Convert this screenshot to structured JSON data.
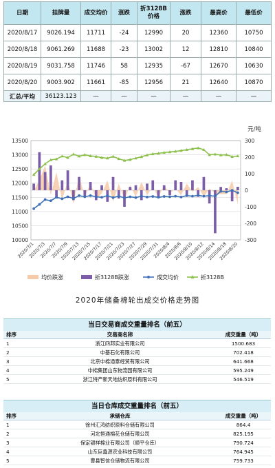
{
  "price_table": {
    "headers": [
      "日期",
      "挂牌量",
      "成交均价",
      "涨跌",
      "折3128B价格",
      "涨跌",
      "最高价",
      "最低价"
    ],
    "rows": [
      [
        "2020/8/17",
        "9026.194",
        "11711",
        "-24",
        "12990",
        "20",
        "12360",
        "10750"
      ],
      [
        "2020/8/18",
        "9061.269",
        "11688",
        "-23",
        "13002",
        "12",
        "12810",
        "10840"
      ],
      [
        "2020/8/19",
        "9031.758",
        "11746",
        "58",
        "12935",
        "-67",
        "12670",
        "10630"
      ],
      [
        "2020/8/20",
        "9003.902",
        "11661",
        "-85",
        "12956",
        "21",
        "12640",
        "10870"
      ]
    ],
    "total": [
      "汇总/平均",
      "36123.123",
      "—",
      "—",
      "—",
      "—",
      "—",
      "—"
    ]
  },
  "chart_data": {
    "type": "line",
    "unit_label": "元/吨",
    "title": "2020年储备棉轮出成交价格走势图",
    "x": [
      "2020/7/1",
      "2020/7/2",
      "2020/7/3",
      "2020/7/6",
      "2020/7/7",
      "2020/7/8",
      "2020/7/9",
      "2020/7/10",
      "2020/7/13",
      "2020/7/14",
      "2020/7/15",
      "2020/7/16",
      "2020/7/17",
      "2020/7/20",
      "2020/7/21",
      "2020/7/22",
      "2020/7/23",
      "2020/7/24",
      "2020/7/27",
      "2020/7/28",
      "2020/7/29",
      "2020/7/30",
      "2020/7/31",
      "2020/8/3",
      "2020/8/4",
      "2020/8/5",
      "2020/8/6",
      "2020/8/7",
      "2020/8/10",
      "2020/8/11",
      "2020/8/12",
      "2020/8/13",
      "2020/8/14",
      "2020/8/17",
      "2020/8/18",
      "2020/8/19",
      "2020/8/20"
    ],
    "x_tick_labels": [
      "2020/7/1",
      "2020/7/3",
      "2020/7/7",
      "2020/7/9",
      "2020/7/13",
      "2020/7/15",
      "2020/7/17",
      "2020/7/21",
      "2020/7/23",
      "2020/7/27",
      "2020/7/29",
      "2020/7/31",
      "2020/8/4",
      "2020/8/6",
      "2020/8/10",
      "2020/8/12",
      "2020/8/14",
      "2020/8/18",
      "2020/8/20"
    ],
    "ylim_left": [
      10000,
      13500
    ],
    "ylim_right": [
      -300,
      300
    ],
    "yticks_left": [
      10000,
      10500,
      11000,
      11500,
      12000,
      12500,
      13000,
      13500
    ],
    "yticks_right": [
      -300,
      -200,
      -100,
      0,
      100,
      200,
      300
    ],
    "series": [
      {
        "name": "均价跌涨",
        "type": "area",
        "axis": "right",
        "color": "#f6c9a8",
        "values": [
          0,
          60,
          150,
          -30,
          110,
          -60,
          60,
          -80,
          90,
          -40,
          40,
          -50,
          -20,
          60,
          -70,
          40,
          -60,
          30,
          -40,
          50,
          -30,
          20,
          -40,
          30,
          -20,
          10,
          -30,
          40,
          -10,
          20,
          -40,
          10,
          -20,
          -24,
          -23,
          58,
          -85
        ]
      },
      {
        "name": "折3128B跌涨",
        "type": "bar",
        "axis": "right",
        "color": "#7b5ea7",
        "values": [
          40,
          230,
          110,
          150,
          -50,
          60,
          120,
          -60,
          80,
          -40,
          50,
          -60,
          30,
          -70,
          80,
          -50,
          -100,
          20,
          30,
          -60,
          40,
          60,
          -40,
          30,
          -30,
          60,
          50,
          -30,
          60,
          -40,
          80,
          -80,
          -260,
          20,
          12,
          -67,
          21
        ]
      },
      {
        "name": "成交均价",
        "type": "line",
        "axis": "left",
        "color": "#3f6fb5",
        "values": [
          11100,
          11250,
          11420,
          11380,
          11500,
          11450,
          11520,
          11460,
          11560,
          11520,
          11560,
          11520,
          11500,
          11560,
          11490,
          11540,
          11480,
          11520,
          11490,
          11540,
          11510,
          11530,
          11500,
          11530,
          11520,
          11540,
          11510,
          11560,
          11540,
          11570,
          11540,
          11560,
          11540,
          11711,
          11688,
          11746,
          11661
        ]
      },
      {
        "name": "折3128B",
        "type": "line",
        "axis": "left",
        "color": "#8cbf4b",
        "values": [
          12300,
          12500,
          12680,
          12820,
          12850,
          12950,
          12900,
          13020,
          12950,
          13000,
          12960,
          12940,
          12900,
          12880,
          12940,
          12860,
          12800,
          12830,
          12880,
          12930,
          12990,
          13030,
          13050,
          13080,
          13100,
          13120,
          13150,
          13180,
          13210,
          13240,
          13180,
          13000,
          13020,
          12990,
          13002,
          12935,
          12956
        ]
      }
    ]
  },
  "trader_rank": {
    "title": "当日交易商成交重量排名（前五）",
    "headers": [
      "排序",
      "交易商名称",
      "成交重量（吨）"
    ],
    "rows": [
      [
        "1",
        "浙江四邦实业有限公司",
        "1500.683"
      ],
      [
        "2",
        "中基石化有限公司",
        "702.418"
      ],
      [
        "3",
        "北京中棉通泰经贸有限公司",
        "641.668"
      ],
      [
        "4",
        "中棉集团山东物流园有限公司",
        "595.249"
      ],
      [
        "5",
        "浙江特产新天地纺织原料有限公司",
        "546.519"
      ]
    ]
  },
  "warehouse_rank": {
    "title": "当日仓库成交重量排名（前五）",
    "headers": [
      "排序",
      "承储仓库",
      "成交重量（吨）"
    ],
    "rows": [
      [
        "1",
        "徐州汇鸿纺织原料仓储有限公司",
        "864.4"
      ],
      [
        "2",
        "河北恒通棉花仓储有限公司",
        "825.195"
      ],
      [
        "3",
        "保定银祥棉业有限公司（顺平仓库）",
        "790.724"
      ],
      [
        "4",
        "山东巨鑫源农业科技有限公司",
        "764.945"
      ],
      [
        "5",
        "曹县智信仓储物流有限公司",
        "759.733"
      ]
    ]
  }
}
